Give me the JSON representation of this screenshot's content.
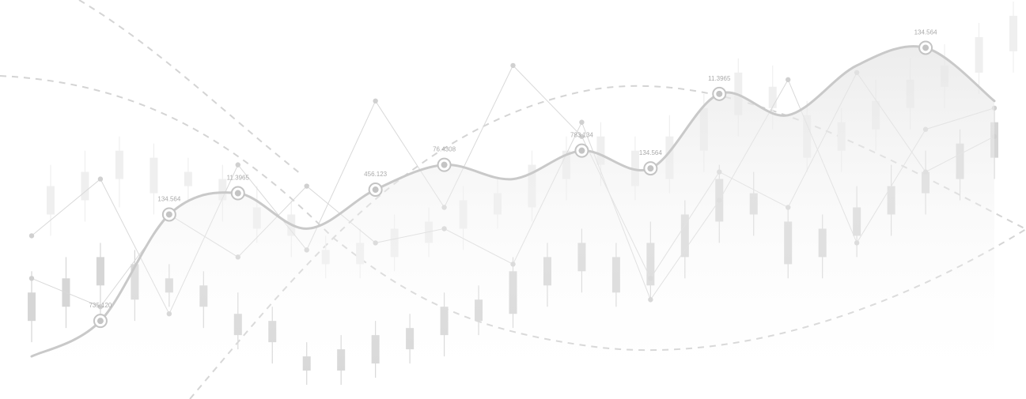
{
  "chart_data": {
    "type": "line",
    "title": "",
    "xlabel": "",
    "ylabel": "",
    "axes_visible": false,
    "grid": false,
    "legend": "none",
    "colors": {
      "main_line": "#c9c9c9",
      "area_fill": "#eeeeee",
      "candle": "#d6d6d6",
      "candle_faint": "#efefef",
      "thin_line": "#d9d9d9",
      "dashed_curve": "#d4d4d4",
      "marker_ring": "#c4c4c4",
      "label": "#aaaaaa"
    },
    "main_series": {
      "points": [
        {
          "x": 0,
          "y": 8
        },
        {
          "x": 1,
          "y": 18
        },
        {
          "x": 2,
          "y": 48
        },
        {
          "x": 3,
          "y": 54
        },
        {
          "x": 4,
          "y": 44
        },
        {
          "x": 5,
          "y": 55
        },
        {
          "x": 6,
          "y": 62
        },
        {
          "x": 7,
          "y": 58
        },
        {
          "x": 8,
          "y": 66
        },
        {
          "x": 9,
          "y": 61
        },
        {
          "x": 10,
          "y": 82
        },
        {
          "x": 11,
          "y": 76
        },
        {
          "x": 12,
          "y": 90
        },
        {
          "x": 13,
          "y": 95
        },
        {
          "x": 14,
          "y": 80
        }
      ],
      "markers": [
        {
          "index": 1,
          "label": "735.120"
        },
        {
          "index": 2,
          "label": "134.564"
        },
        {
          "index": 3,
          "label": "11.3965"
        },
        {
          "index": 5,
          "label": "456.123"
        },
        {
          "index": 6,
          "label": "76.4308"
        },
        {
          "index": 8,
          "label": "783.134"
        },
        {
          "index": 9,
          "label": "134.564"
        },
        {
          "index": 10,
          "label": "11.3965"
        },
        {
          "index": 13,
          "label": "134.564"
        }
      ]
    },
    "zigzag_series": [
      {
        "points": [
          [
            0,
            42
          ],
          [
            1,
            58
          ],
          [
            2,
            20
          ],
          [
            3,
            62
          ],
          [
            4,
            38
          ],
          [
            5,
            80
          ],
          [
            6,
            50
          ],
          [
            7,
            90
          ],
          [
            8,
            70
          ],
          [
            9,
            30
          ],
          [
            10,
            60
          ],
          [
            11,
            50
          ],
          [
            12,
            88
          ],
          [
            13,
            60
          ],
          [
            14,
            70
          ]
        ]
      },
      {
        "points": [
          [
            0,
            30
          ],
          [
            1,
            22
          ],
          [
            2,
            48
          ],
          [
            3,
            36
          ],
          [
            4,
            56
          ],
          [
            5,
            40
          ],
          [
            6,
            44
          ],
          [
            7,
            34
          ],
          [
            8,
            74
          ],
          [
            9,
            24
          ],
          [
            10,
            52
          ],
          [
            11,
            86
          ],
          [
            12,
            40
          ],
          [
            13,
            72
          ],
          [
            14,
            78
          ]
        ]
      }
    ],
    "dashed_curves": [
      {
        "shape": "descending-wave"
      },
      {
        "shape": "ascending-arc"
      },
      {
        "shape": "trough-wave"
      }
    ],
    "candles": [
      {
        "x": 0,
        "open": 18,
        "close": 26,
        "high": 32,
        "low": 12
      },
      {
        "x": 0.5,
        "open": 22,
        "close": 30,
        "high": 36,
        "low": 16
      },
      {
        "x": 1,
        "open": 28,
        "close": 36,
        "high": 40,
        "low": 20
      },
      {
        "x": 1.5,
        "open": 24,
        "close": 34,
        "high": 38,
        "low": 18
      },
      {
        "x": 2,
        "open": 30,
        "close": 26,
        "high": 34,
        "low": 22
      },
      {
        "x": 2.5,
        "open": 22,
        "close": 28,
        "high": 32,
        "low": 16
      },
      {
        "x": 3,
        "open": 20,
        "close": 14,
        "high": 26,
        "low": 10
      },
      {
        "x": 3.5,
        "open": 12,
        "close": 18,
        "high": 22,
        "low": 6
      },
      {
        "x": 4,
        "open": 8,
        "close": 4,
        "high": 12,
        "low": 0
      },
      {
        "x": 4.5,
        "open": 4,
        "close": 10,
        "high": 14,
        "low": 0
      },
      {
        "x": 5,
        "open": 6,
        "close": 14,
        "high": 18,
        "low": 2
      },
      {
        "x": 5.5,
        "open": 10,
        "close": 16,
        "high": 20,
        "low": 6
      },
      {
        "x": 6,
        "open": 14,
        "close": 22,
        "high": 26,
        "low": 8
      },
      {
        "x": 6.5,
        "open": 18,
        "close": 24,
        "high": 28,
        "low": 14
      },
      {
        "x": 7,
        "open": 20,
        "close": 32,
        "high": 36,
        "low": 16
      },
      {
        "x": 7.5,
        "open": 28,
        "close": 36,
        "high": 40,
        "low": 22
      },
      {
        "x": 8,
        "open": 32,
        "close": 40,
        "high": 44,
        "low": 26
      },
      {
        "x": 8.5,
        "open": 36,
        "close": 26,
        "high": 40,
        "low": 22
      },
      {
        "x": 9,
        "open": 28,
        "close": 40,
        "high": 46,
        "low": 24
      },
      {
        "x": 9.5,
        "open": 36,
        "close": 48,
        "high": 52,
        "low": 30
      },
      {
        "x": 10,
        "open": 46,
        "close": 58,
        "high": 62,
        "low": 40
      },
      {
        "x": 10.5,
        "open": 54,
        "close": 48,
        "high": 60,
        "low": 42
      },
      {
        "x": 11,
        "open": 46,
        "close": 34,
        "high": 50,
        "low": 30
      },
      {
        "x": 11.5,
        "open": 36,
        "close": 44,
        "high": 48,
        "low": 30
      },
      {
        "x": 12,
        "open": 42,
        "close": 50,
        "high": 56,
        "low": 36
      },
      {
        "x": 12.5,
        "open": 48,
        "close": 56,
        "high": 62,
        "low": 42
      },
      {
        "x": 13,
        "open": 54,
        "close": 60,
        "high": 66,
        "low": 48
      },
      {
        "x": 13.5,
        "open": 58,
        "close": 68,
        "high": 72,
        "low": 52
      },
      {
        "x": 14,
        "open": 64,
        "close": 74,
        "high": 78,
        "low": 58
      }
    ]
  }
}
